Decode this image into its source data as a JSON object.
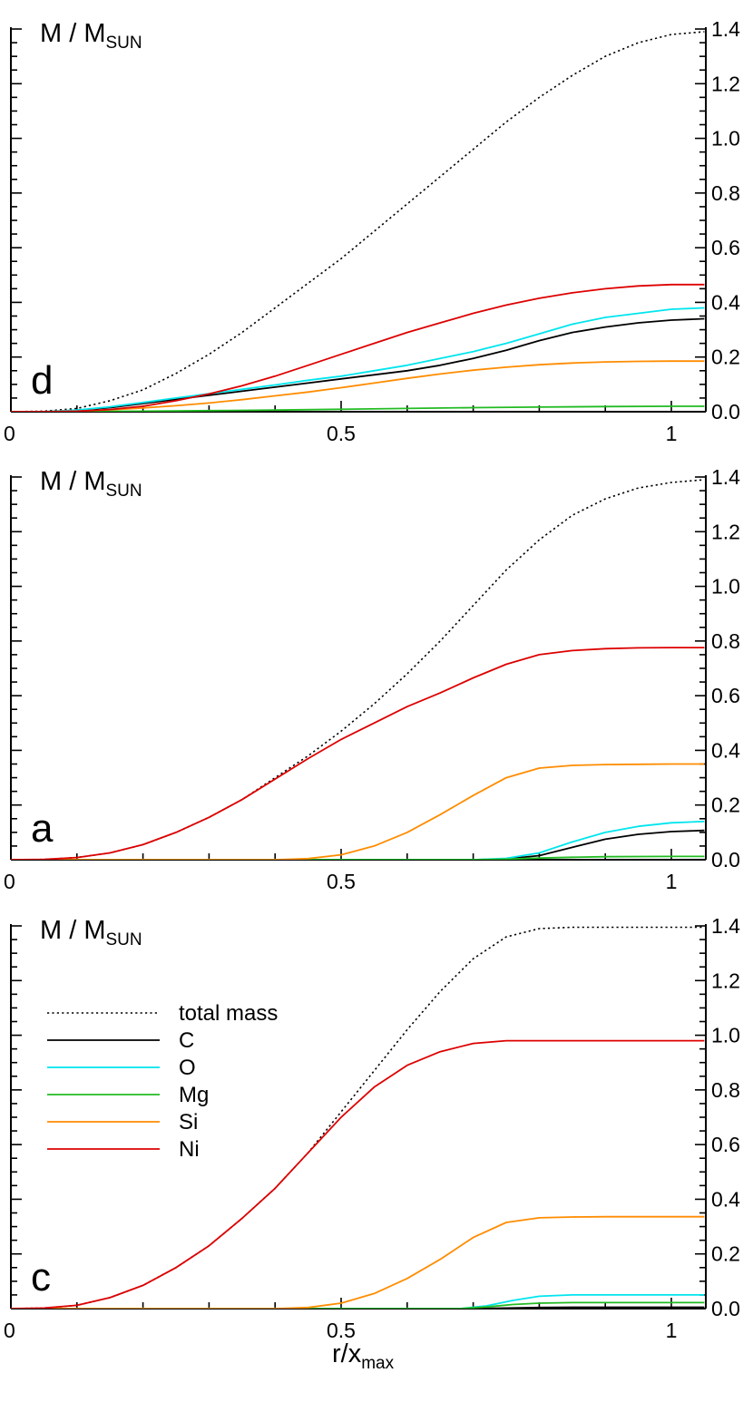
{
  "chart_data": {
    "type": "line",
    "panels": [
      {
        "panel_label": "d",
        "y_axis_title": "M / M",
        "y_axis_title_sub": "SUN",
        "xlim": [
          0,
          1.05
        ],
        "ylim": [
          0,
          1.4
        ],
        "x_tick_labels": [
          "0",
          "0.5",
          "1"
        ],
        "y_tick_labels": [
          "0.0",
          "0.2",
          "0.4",
          "0.6",
          "0.8",
          "1.0",
          "1.2",
          "1.4"
        ],
        "series": [
          {
            "name": "total mass",
            "color": "#000000",
            "dashed": true,
            "x": [
              0,
              0.05,
              0.1,
              0.15,
              0.2,
              0.25,
              0.3,
              0.35,
              0.4,
              0.45,
              0.5,
              0.55,
              0.6,
              0.65,
              0.7,
              0.75,
              0.8,
              0.85,
              0.9,
              0.95,
              1.0,
              1.05
            ],
            "y": [
              0,
              0.002,
              0.012,
              0.04,
              0.08,
              0.14,
              0.21,
              0.29,
              0.38,
              0.47,
              0.56,
              0.66,
              0.76,
              0.86,
              0.96,
              1.06,
              1.15,
              1.23,
              1.3,
              1.35,
              1.38,
              1.39
            ]
          },
          {
            "name": "C",
            "color": "#000000",
            "dashed": false,
            "x": [
              0,
              0.05,
              0.1,
              0.15,
              0.2,
              0.25,
              0.3,
              0.35,
              0.4,
              0.45,
              0.5,
              0.55,
              0.6,
              0.65,
              0.7,
              0.75,
              0.8,
              0.85,
              0.9,
              0.95,
              1.0,
              1.05
            ],
            "y": [
              0,
              0.0,
              0.005,
              0.015,
              0.03,
              0.045,
              0.06,
              0.075,
              0.09,
              0.105,
              0.12,
              0.135,
              0.15,
              0.17,
              0.195,
              0.225,
              0.26,
              0.29,
              0.31,
              0.325,
              0.335,
              0.34
            ]
          },
          {
            "name": "O",
            "color": "#00e5ee",
            "dashed": false,
            "x": [
              0,
              0.05,
              0.1,
              0.15,
              0.2,
              0.25,
              0.3,
              0.35,
              0.4,
              0.45,
              0.5,
              0.55,
              0.6,
              0.65,
              0.7,
              0.75,
              0.8,
              0.85,
              0.9,
              0.95,
              1.0,
              1.05
            ],
            "y": [
              0,
              0.0,
              0.006,
              0.018,
              0.034,
              0.05,
              0.066,
              0.082,
              0.098,
              0.115,
              0.13,
              0.15,
              0.17,
              0.195,
              0.22,
              0.25,
              0.285,
              0.32,
              0.345,
              0.36,
              0.375,
              0.38
            ]
          },
          {
            "name": "Mg",
            "color": "#22bb22",
            "dashed": false,
            "x": [
              0,
              0.1,
              0.2,
              0.3,
              0.4,
              0.5,
              0.6,
              0.7,
              0.8,
              0.9,
              1.0,
              1.05
            ],
            "y": [
              0,
              0.0005,
              0.002,
              0.004,
              0.006,
              0.009,
              0.012,
              0.015,
              0.017,
              0.019,
              0.02,
              0.02
            ]
          },
          {
            "name": "Si",
            "color": "#ff8c00",
            "dashed": false,
            "x": [
              0,
              0.05,
              0.1,
              0.15,
              0.2,
              0.25,
              0.3,
              0.35,
              0.4,
              0.45,
              0.5,
              0.55,
              0.6,
              0.65,
              0.7,
              0.75,
              0.8,
              0.85,
              0.9,
              0.95,
              1.0,
              1.05
            ],
            "y": [
              0,
              0.0,
              0.002,
              0.007,
              0.014,
              0.022,
              0.032,
              0.044,
              0.058,
              0.072,
              0.088,
              0.105,
              0.122,
              0.138,
              0.152,
              0.163,
              0.172,
              0.178,
              0.182,
              0.184,
              0.185,
              0.185
            ]
          },
          {
            "name": "Ni",
            "color": "#dd0000",
            "dashed": false,
            "x": [
              0,
              0.05,
              0.1,
              0.15,
              0.2,
              0.25,
              0.3,
              0.35,
              0.4,
              0.45,
              0.5,
              0.55,
              0.6,
              0.65,
              0.7,
              0.75,
              0.8,
              0.85,
              0.9,
              0.95,
              1.0,
              1.05
            ],
            "y": [
              0,
              0.0,
              0.002,
              0.008,
              0.02,
              0.04,
              0.065,
              0.095,
              0.13,
              0.17,
              0.21,
              0.25,
              0.29,
              0.325,
              0.36,
              0.39,
              0.415,
              0.435,
              0.45,
              0.46,
              0.465,
              0.465
            ]
          }
        ]
      },
      {
        "panel_label": "a",
        "y_axis_title": "M / M",
        "y_axis_title_sub": "SUN",
        "xlim": [
          0,
          1.05
        ],
        "ylim": [
          0,
          1.4
        ],
        "x_tick_labels": [
          "0",
          "0.5",
          "1"
        ],
        "y_tick_labels": [
          "0.0",
          "0.2",
          "0.4",
          "0.6",
          "0.8",
          "1.0",
          "1.2",
          "1.4"
        ],
        "series": [
          {
            "name": "total mass",
            "color": "#000000",
            "dashed": true,
            "x": [
              0,
              0.05,
              0.1,
              0.15,
              0.2,
              0.25,
              0.3,
              0.35,
              0.4,
              0.45,
              0.5,
              0.55,
              0.6,
              0.65,
              0.7,
              0.75,
              0.8,
              0.85,
              0.9,
              0.95,
              1.0,
              1.05
            ],
            "y": [
              0,
              0.001,
              0.008,
              0.025,
              0.055,
              0.1,
              0.155,
              0.22,
              0.3,
              0.38,
              0.47,
              0.57,
              0.68,
              0.8,
              0.93,
              1.06,
              1.17,
              1.26,
              1.32,
              1.36,
              1.38,
              1.39
            ]
          },
          {
            "name": "C",
            "color": "#000000",
            "dashed": false,
            "x": [
              0,
              0.7,
              0.75,
              0.8,
              0.85,
              0.9,
              0.95,
              1.0,
              1.05
            ],
            "y": [
              0,
              0.0,
              0.003,
              0.015,
              0.045,
              0.075,
              0.093,
              0.103,
              0.107
            ]
          },
          {
            "name": "O",
            "color": "#00e5ee",
            "dashed": false,
            "x": [
              0,
              0.7,
              0.75,
              0.8,
              0.85,
              0.9,
              0.95,
              1.0,
              1.05
            ],
            "y": [
              0,
              0.0,
              0.005,
              0.025,
              0.065,
              0.1,
              0.122,
              0.135,
              0.14
            ]
          },
          {
            "name": "Mg",
            "color": "#22bb22",
            "dashed": false,
            "x": [
              0,
              0.7,
              0.75,
              0.8,
              0.85,
              0.9,
              1.0,
              1.05
            ],
            "y": [
              0,
              0.0,
              0.002,
              0.006,
              0.009,
              0.011,
              0.012,
              0.012
            ]
          },
          {
            "name": "Si",
            "color": "#ff8c00",
            "dashed": false,
            "x": [
              0,
              0.4,
              0.45,
              0.5,
              0.55,
              0.6,
              0.65,
              0.7,
              0.75,
              0.8,
              0.85,
              0.9,
              0.95,
              1.0,
              1.05
            ],
            "y": [
              0,
              0.0,
              0.004,
              0.018,
              0.05,
              0.1,
              0.165,
              0.235,
              0.3,
              0.335,
              0.345,
              0.348,
              0.349,
              0.35,
              0.35
            ]
          },
          {
            "name": "Ni",
            "color": "#dd0000",
            "dashed": false,
            "x": [
              0,
              0.05,
              0.1,
              0.15,
              0.2,
              0.25,
              0.3,
              0.35,
              0.4,
              0.45,
              0.5,
              0.55,
              0.6,
              0.65,
              0.7,
              0.75,
              0.8,
              0.85,
              0.9,
              0.95,
              1.0,
              1.05
            ],
            "y": [
              0,
              0.001,
              0.008,
              0.025,
              0.055,
              0.1,
              0.155,
              0.22,
              0.295,
              0.37,
              0.44,
              0.5,
              0.56,
              0.61,
              0.665,
              0.715,
              0.75,
              0.765,
              0.772,
              0.775,
              0.776,
              0.776
            ]
          }
        ]
      },
      {
        "panel_label": "c",
        "y_axis_title": "M / M",
        "y_axis_title_sub": "SUN",
        "xlim": [
          0,
          1.05
        ],
        "ylim": [
          0,
          1.4
        ],
        "x_tick_labels": [
          "0",
          "0.5",
          "1"
        ],
        "y_tick_labels": [
          "0.0",
          "0.2",
          "0.4",
          "0.6",
          "0.8",
          "1.0",
          "1.2",
          "1.4"
        ],
        "x_axis_title": "r/x",
        "x_axis_title_sub": "max",
        "legend": {
          "placement": "upper-left",
          "entries": [
            "total mass",
            "C",
            "O",
            "Mg",
            "Si",
            "Ni"
          ]
        },
        "series": [
          {
            "name": "total mass",
            "color": "#000000",
            "dashed": true,
            "x": [
              0,
              0.05,
              0.1,
              0.15,
              0.2,
              0.25,
              0.3,
              0.35,
              0.4,
              0.45,
              0.5,
              0.55,
              0.6,
              0.65,
              0.7,
              0.75,
              0.8,
              0.85,
              0.9,
              0.95,
              1.0,
              1.05
            ],
            "y": [
              0,
              0.002,
              0.012,
              0.04,
              0.085,
              0.15,
              0.23,
              0.33,
              0.44,
              0.57,
              0.72,
              0.87,
              1.02,
              1.16,
              1.28,
              1.36,
              1.39,
              1.395,
              1.395,
              1.395,
              1.395,
              1.395
            ]
          },
          {
            "name": "C",
            "color": "#000000",
            "dashed": false,
            "x": [
              0,
              0.7,
              0.75,
              0.8,
              0.85,
              0.9,
              1.0,
              1.05
            ],
            "y": [
              0,
              0.0,
              0.002,
              0.004,
              0.005,
              0.005,
              0.005,
              0.005
            ]
          },
          {
            "name": "O",
            "color": "#00e5ee",
            "dashed": false,
            "x": [
              0,
              0.68,
              0.72,
              0.76,
              0.8,
              0.85,
              0.9,
              1.0,
              1.05
            ],
            "y": [
              0,
              0.0,
              0.01,
              0.03,
              0.045,
              0.05,
              0.05,
              0.05,
              0.05
            ]
          },
          {
            "name": "Mg",
            "color": "#22bb22",
            "dashed": false,
            "x": [
              0,
              0.68,
              0.72,
              0.76,
              0.8,
              0.85,
              1.0,
              1.05
            ],
            "y": [
              0,
              0.0,
              0.006,
              0.015,
              0.02,
              0.022,
              0.022,
              0.022
            ]
          },
          {
            "name": "Si",
            "color": "#ff8c00",
            "dashed": false,
            "x": [
              0,
              0.4,
              0.45,
              0.5,
              0.55,
              0.6,
              0.65,
              0.7,
              0.75,
              0.8,
              0.85,
              0.9,
              1.0,
              1.05
            ],
            "y": [
              0,
              0.0,
              0.004,
              0.02,
              0.055,
              0.11,
              0.18,
              0.26,
              0.315,
              0.332,
              0.335,
              0.336,
              0.336,
              0.336
            ]
          },
          {
            "name": "Ni",
            "color": "#dd0000",
            "dashed": false,
            "x": [
              0,
              0.05,
              0.1,
              0.15,
              0.2,
              0.25,
              0.3,
              0.35,
              0.4,
              0.45,
              0.5,
              0.55,
              0.6,
              0.65,
              0.7,
              0.75,
              0.8,
              0.85,
              0.9,
              0.95,
              1.0,
              1.05
            ],
            "y": [
              0,
              0.002,
              0.012,
              0.04,
              0.085,
              0.15,
              0.23,
              0.33,
              0.44,
              0.57,
              0.7,
              0.81,
              0.89,
              0.94,
              0.97,
              0.98,
              0.98,
              0.98,
              0.98,
              0.98,
              0.98,
              0.98
            ]
          }
        ]
      }
    ]
  }
}
